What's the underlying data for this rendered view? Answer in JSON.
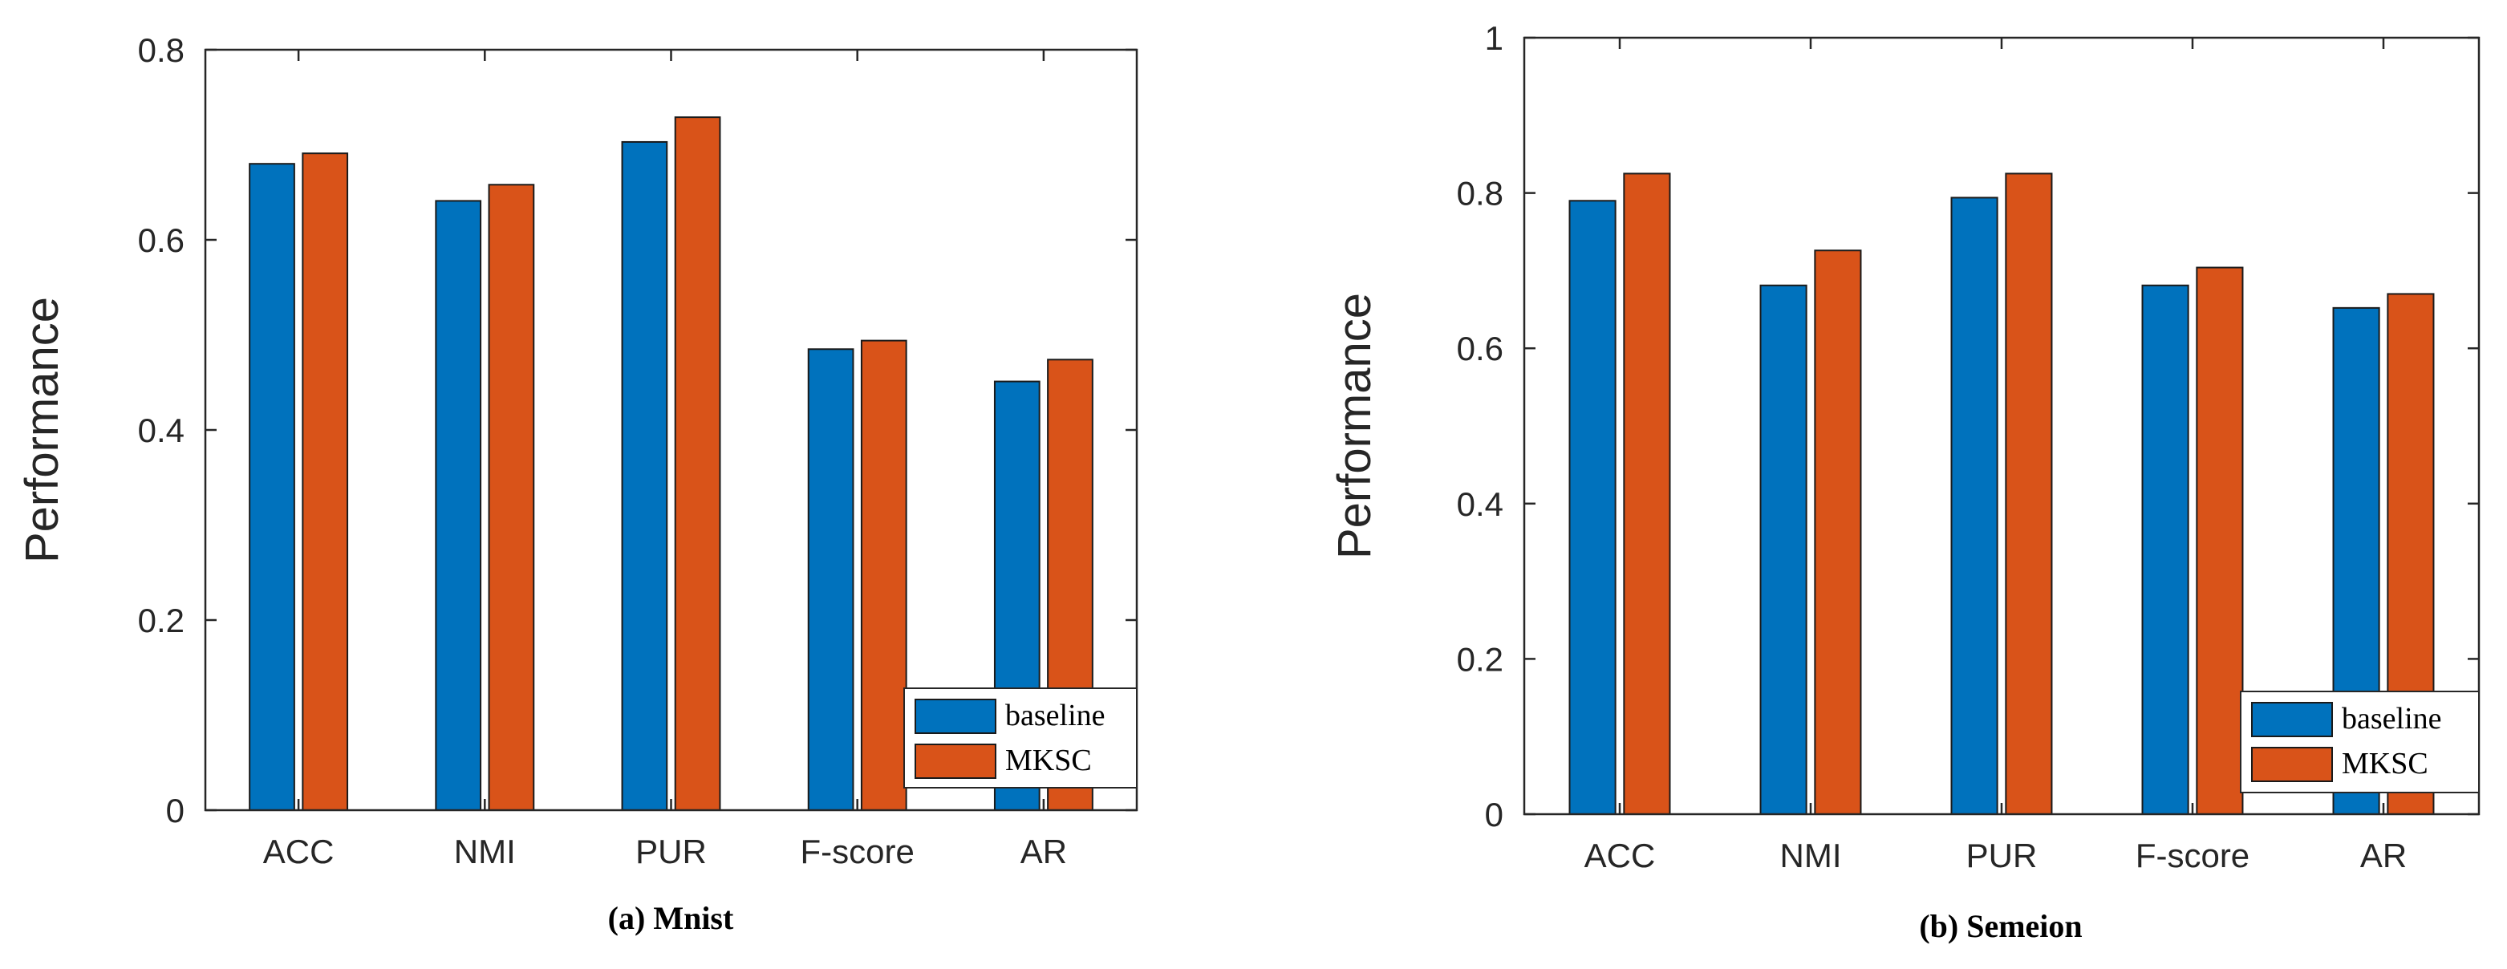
{
  "chart_data": [
    {
      "type": "bar",
      "caption": "(a)  Mnist",
      "ylabel": "Performance",
      "ylim": [
        0,
        0.8
      ],
      "yticks": [
        0,
        0.2,
        0.4,
        0.6,
        0.8
      ],
      "ytick_labels": [
        "0",
        "0.2",
        "0.4",
        "0.6",
        "0.8"
      ],
      "categories": [
        "ACC",
        "NMI",
        "PUR",
        "F-score",
        "AR"
      ],
      "series": [
        {
          "name": "baseline",
          "color": "#0072BD",
          "values": [
            0.68,
            0.641,
            0.703,
            0.485,
            0.451
          ]
        },
        {
          "name": "MKSC",
          "color": "#D95319",
          "values": [
            0.691,
            0.658,
            0.729,
            0.494,
            0.474
          ]
        }
      ],
      "legend": "bottom-right",
      "grid": false
    },
    {
      "type": "bar",
      "caption": "(b)  Semeion",
      "ylabel": "Performance",
      "ylim": [
        0,
        1
      ],
      "yticks": [
        0,
        0.2,
        0.4,
        0.6,
        0.8,
        1
      ],
      "ytick_labels": [
        "0",
        "0.2",
        "0.4",
        "0.6",
        "0.8",
        "1"
      ],
      "categories": [
        "ACC",
        "NMI",
        "PUR",
        "F-score",
        "AR"
      ],
      "series": [
        {
          "name": "baseline",
          "color": "#0072BD",
          "values": [
            0.79,
            0.681,
            0.794,
            0.681,
            0.652
          ]
        },
        {
          "name": "MKSC",
          "color": "#D95319",
          "values": [
            0.825,
            0.726,
            0.825,
            0.704,
            0.67
          ]
        }
      ],
      "legend": "bottom-right",
      "grid": false
    }
  ]
}
